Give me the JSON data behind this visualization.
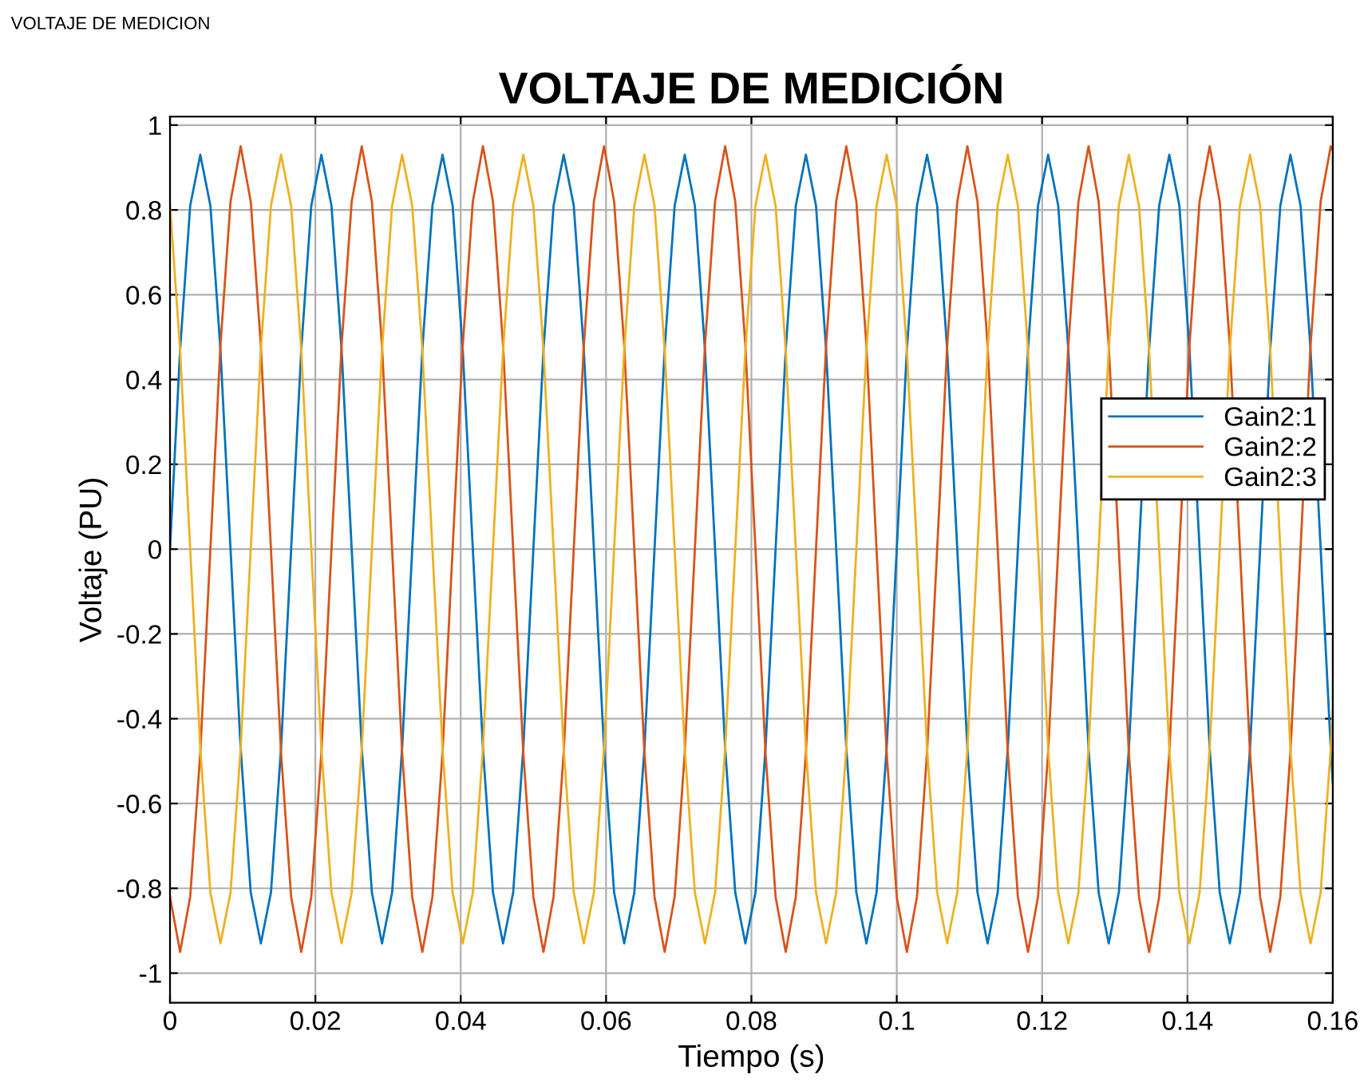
{
  "chart_data": {
    "type": "line",
    "title": "VOLTAJE DE MEDICIÓN",
    "xlabel": "Tiempo (s)",
    "ylabel": "Voltaje (PU)",
    "annotations": [
      "VOLTAJE DE MEDICION"
    ],
    "x": [
      0,
      0.00139,
      0.00278,
      0.00417,
      0.00556,
      0.00694,
      0.00833,
      0.00972,
      0.01111,
      0.0125,
      0.01389,
      0.01528,
      0.01667,
      0.01806,
      0.01944,
      0.02083,
      0.02222,
      0.02361,
      0.025,
      0.02639,
      0.02778,
      0.02917,
      0.03056,
      0.03194,
      0.03333,
      0.03472,
      0.03611,
      0.0375,
      0.03889,
      0.04028,
      0.04167,
      0.04306,
      0.04444,
      0.04583,
      0.04722,
      0.04861,
      0.05,
      0.05139,
      0.05278,
      0.05417,
      0.05556,
      0.05694,
      0.05833,
      0.05972,
      0.06111,
      0.0625,
      0.06389,
      0.06528,
      0.06667,
      0.06806,
      0.06944,
      0.07083,
      0.07222,
      0.07361,
      0.075,
      0.07639,
      0.07778,
      0.07917,
      0.08056,
      0.08194,
      0.08333,
      0.08472,
      0.08611,
      0.0875,
      0.08889,
      0.09028,
      0.09167,
      0.09306,
      0.09444,
      0.09583,
      0.09722,
      0.09861,
      0.1,
      0.10139,
      0.10278,
      0.10417,
      0.10556,
      0.10694,
      0.10833,
      0.10972,
      0.11111,
      0.1125,
      0.11389,
      0.11528,
      0.11667,
      0.11806,
      0.11944,
      0.12083,
      0.12222,
      0.12361,
      0.125,
      0.12639,
      0.12778,
      0.12917,
      0.13056,
      0.13194,
      0.13333,
      0.13472,
      0.13611,
      0.1375,
      0.13889,
      0.14028,
      0.14167,
      0.14306,
      0.14444,
      0.14583,
      0.14722,
      0.14861,
      0.15,
      0.15139,
      0.15278,
      0.15417,
      0.15556,
      0.15694,
      0.15833,
      0.15972,
      0.16
    ],
    "series": [
      {
        "name": "Gain2:1",
        "color": "#0072bd",
        "values": [
          0,
          0.47,
          0.81,
          0.93,
          0.81,
          0.47,
          0,
          -0.47,
          -0.81,
          -0.93,
          -0.81,
          -0.47,
          0,
          0.47,
          0.81,
          0.93,
          0.81,
          0.47,
          0,
          -0.47,
          -0.81,
          -0.93,
          -0.81,
          -0.47,
          0,
          0.47,
          0.81,
          0.93,
          0.81,
          0.47,
          0,
          -0.47,
          -0.81,
          -0.93,
          -0.81,
          -0.47,
          0,
          0.47,
          0.81,
          0.93,
          0.81,
          0.47,
          0,
          -0.47,
          -0.81,
          -0.93,
          -0.81,
          -0.47,
          0,
          0.47,
          0.81,
          0.93,
          0.81,
          0.47,
          0,
          -0.47,
          -0.81,
          -0.93,
          -0.81,
          -0.47,
          0,
          0.47,
          0.81,
          0.93,
          0.81,
          0.47,
          0,
          -0.47,
          -0.81,
          -0.93,
          -0.81,
          -0.47,
          0,
          0.47,
          0.81,
          0.93,
          0.81,
          0.47,
          0,
          -0.47,
          -0.81,
          -0.93,
          -0.81,
          -0.47,
          0,
          0.47,
          0.81,
          0.93,
          0.81,
          0.47,
          0,
          -0.47,
          -0.81,
          -0.93,
          -0.81,
          -0.47,
          0,
          0.47,
          0.81,
          0.93,
          0.81,
          0.47,
          0,
          -0.47,
          -0.81,
          -0.93,
          -0.81,
          -0.47,
          0,
          0.47,
          0.81,
          0.93,
          0.81,
          0.47,
          0,
          -0.47,
          -0.55
        ]
      },
      {
        "name": "Gain2:2",
        "color": "#d95319",
        "values": [
          -0.82,
          -0.95,
          -0.82,
          -0.48,
          0,
          0.48,
          0.82,
          0.95,
          0.82,
          0.48,
          0,
          -0.48,
          -0.82,
          -0.95,
          -0.82,
          -0.48,
          0,
          0.48,
          0.82,
          0.95,
          0.82,
          0.48,
          0,
          -0.48,
          -0.82,
          -0.95,
          -0.82,
          -0.48,
          0,
          0.48,
          0.82,
          0.95,
          0.82,
          0.48,
          0,
          -0.48,
          -0.82,
          -0.95,
          -0.82,
          -0.48,
          0,
          0.48,
          0.82,
          0.95,
          0.82,
          0.48,
          0,
          -0.48,
          -0.82,
          -0.95,
          -0.82,
          -0.48,
          0,
          0.48,
          0.82,
          0.95,
          0.82,
          0.48,
          0,
          -0.48,
          -0.82,
          -0.95,
          -0.82,
          -0.48,
          0,
          0.48,
          0.82,
          0.95,
          0.82,
          0.48,
          0,
          -0.48,
          -0.82,
          -0.95,
          -0.82,
          -0.48,
          0,
          0.48,
          0.82,
          0.95,
          0.82,
          0.48,
          0,
          -0.48,
          -0.82,
          -0.95,
          -0.82,
          -0.48,
          0,
          0.48,
          0.82,
          0.95,
          0.82,
          0.48,
          0,
          -0.48,
          -0.82,
          -0.95,
          -0.82,
          -0.48,
          0,
          0.48,
          0.82,
          0.95,
          0.82,
          0.48,
          0,
          -0.48,
          -0.82,
          -0.95,
          -0.82,
          -0.48,
          0,
          0.48,
          0.82,
          0.95,
          0.94
        ]
      },
      {
        "name": "Gain2:3",
        "color": "#edb120",
        "values": [
          0.81,
          0.47,
          0,
          -0.47,
          -0.81,
          -0.93,
          -0.81,
          -0.47,
          0,
          0.47,
          0.81,
          0.93,
          0.81,
          0.47,
          0,
          -0.47,
          -0.81,
          -0.93,
          -0.81,
          -0.47,
          0,
          0.47,
          0.81,
          0.93,
          0.81,
          0.47,
          0,
          -0.47,
          -0.81,
          -0.93,
          -0.81,
          -0.47,
          0,
          0.47,
          0.81,
          0.93,
          0.81,
          0.47,
          0,
          -0.47,
          -0.81,
          -0.93,
          -0.81,
          -0.47,
          0,
          0.47,
          0.81,
          0.93,
          0.81,
          0.47,
          0,
          -0.47,
          -0.81,
          -0.93,
          -0.81,
          -0.47,
          0,
          0.47,
          0.81,
          0.93,
          0.81,
          0.47,
          0,
          -0.47,
          -0.81,
          -0.93,
          -0.81,
          -0.47,
          0,
          0.47,
          0.81,
          0.93,
          0.81,
          0.47,
          0,
          -0.47,
          -0.81,
          -0.93,
          -0.81,
          -0.47,
          0,
          0.47,
          0.81,
          0.93,
          0.81,
          0.47,
          0,
          -0.47,
          -0.81,
          -0.93,
          -0.81,
          -0.47,
          0,
          0.47,
          0.81,
          0.93,
          0.81,
          0.47,
          0,
          -0.47,
          -0.81,
          -0.93,
          -0.81,
          -0.47,
          0,
          0.47,
          0.81,
          0.93,
          0.81,
          0.47,
          0,
          -0.47,
          -0.81,
          -0.93,
          -0.81,
          -0.47,
          -0.38
        ]
      }
    ],
    "xlim": [
      0,
      0.16
    ],
    "xticks": [
      0,
      0.02,
      0.04,
      0.06,
      0.08,
      0.1,
      0.12,
      0.14,
      0.16
    ],
    "ylim": [
      -1.07,
      1.02
    ],
    "yticks": [
      -1,
      -0.8,
      -0.6,
      -0.4,
      -0.2,
      0,
      0.2,
      0.4,
      0.6,
      0.8,
      1
    ],
    "grid": true,
    "legend": "center right",
    "line_style": "solid",
    "marker": "none"
  }
}
